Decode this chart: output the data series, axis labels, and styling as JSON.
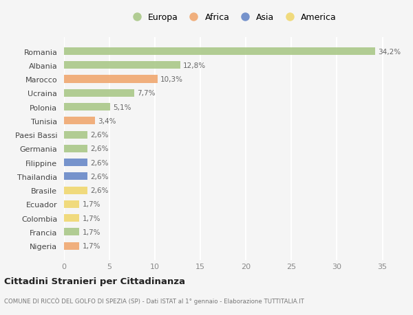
{
  "countries": [
    "Romania",
    "Albania",
    "Marocco",
    "Ucraina",
    "Polonia",
    "Tunisia",
    "Paesi Bassi",
    "Germania",
    "Filippine",
    "Thailandia",
    "Brasile",
    "Ecuador",
    "Colombia",
    "Francia",
    "Nigeria"
  ],
  "values": [
    34.2,
    12.8,
    10.3,
    7.7,
    5.1,
    3.4,
    2.6,
    2.6,
    2.6,
    2.6,
    2.6,
    1.7,
    1.7,
    1.7,
    1.7
  ],
  "labels": [
    "34,2%",
    "12,8%",
    "10,3%",
    "7,7%",
    "5,1%",
    "3,4%",
    "2,6%",
    "2,6%",
    "2,6%",
    "2,6%",
    "2,6%",
    "1,7%",
    "1,7%",
    "1,7%",
    "1,7%"
  ],
  "continent": [
    "Europa",
    "Europa",
    "Africa",
    "Europa",
    "Europa",
    "Africa",
    "Europa",
    "Europa",
    "Asia",
    "Asia",
    "America",
    "America",
    "America",
    "Europa",
    "Africa"
  ],
  "colors": {
    "Europa": "#aac888",
    "Africa": "#f0a870",
    "Asia": "#6888c8",
    "America": "#f0d870"
  },
  "xlim": [
    0,
    37
  ],
  "xticks": [
    0,
    5,
    10,
    15,
    20,
    25,
    30,
    35
  ],
  "title": "Cittadini Stranieri per Cittadinanza",
  "subtitle": "COMUNE DI RICCÒ DEL GOLFO DI SPEZIA (SP) - Dati ISTAT al 1° gennaio - Elaborazione TUTTITALIA.IT",
  "background_color": "#f5f5f5",
  "grid_color": "#ffffff",
  "bar_height": 0.55,
  "legend_order": [
    "Europa",
    "Africa",
    "Asia",
    "America"
  ]
}
